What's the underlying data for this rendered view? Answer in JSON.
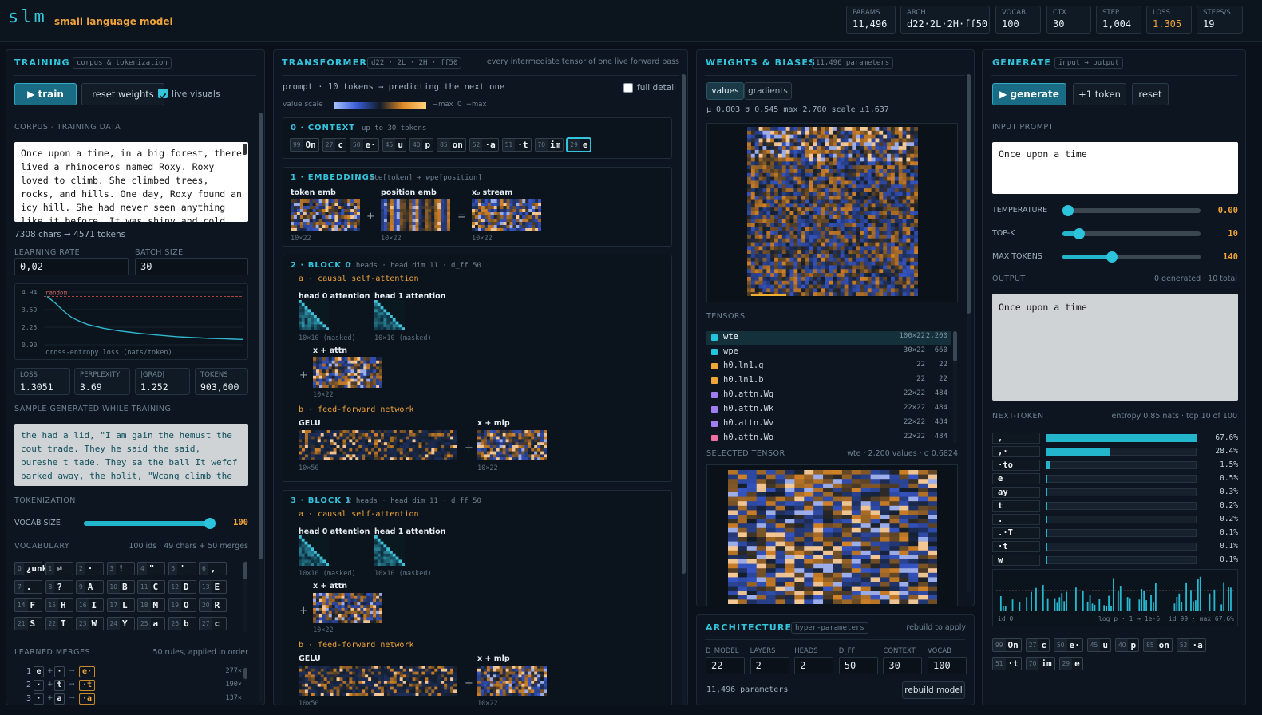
{
  "header": {
    "logo": "slm",
    "tagline": "small language model",
    "stats": [
      {
        "label": "PARAMS",
        "value": "11,496"
      },
      {
        "label": "ARCH",
        "value": "d22·2L·2H·ff50"
      },
      {
        "label": "VOCAB",
        "value": "100"
      },
      {
        "label": "CTX",
        "value": "30"
      },
      {
        "label": "STEP",
        "value": "1,004"
      },
      {
        "label": "LOSS",
        "value": "1.305"
      },
      {
        "label": "STEPS/S",
        "value": "19"
      }
    ]
  },
  "training": {
    "title": "TRAINING",
    "tag": "corpus & tokenization",
    "train_button": "▶ train",
    "reset_button": "reset weights",
    "live_visuals": "live visuals",
    "corpus_label": "CORPUS - TRAINING DATA",
    "corpus_text": "Once upon a time, in a big forest, there lived a rhinoceros named Roxy. Roxy loved to climb. She climbed trees, rocks, and hills. One day, Roxy found an icy hill. She had never seen anything like it before. It was shiny and cold, and she",
    "corpus_stats": "7308 chars → 4571 tokens",
    "fields": [
      {
        "label": "LEARNING RATE",
        "value": "0,02"
      },
      {
        "label": "BATCH SIZE",
        "value": "30"
      }
    ],
    "stats": [
      {
        "label": "LOSS",
        "value": "1.3051"
      },
      {
        "label": "PERPLEXITY",
        "value": "3.69"
      },
      {
        "label": "|GRAD|",
        "value": "1.252"
      },
      {
        "label": "TOKENS",
        "value": "903,600"
      }
    ],
    "sample_label": "SAMPLE GENERATED WHILE TRAINING",
    "sample_text": "the had a lid, \"I am gain the hemust the cout trade. They he said the said, bureshe t tade. They sa the ball It wefof parked away, the holit, \"Wcang climb the ball Idoca",
    "tokenization_label": "TOKENIZATION",
    "vocab_size_label": "VOCAB SIZE",
    "vocab_size": "100",
    "vocabulary_label": "VOCABULARY",
    "vocabulary_note": "100 ids · 49 chars + 50 merges",
    "vocab": [
      {
        "id": "0",
        "text": "¿unk?"
      },
      {
        "id": "1",
        "text": "⏎"
      },
      {
        "id": "2",
        "text": "·"
      },
      {
        "id": "3",
        "text": "!"
      },
      {
        "id": "4",
        "text": "\""
      },
      {
        "id": "5",
        "text": "'"
      },
      {
        "id": "6",
        "text": ","
      },
      {
        "id": "7",
        "text": "."
      },
      {
        "id": "8",
        "text": "?"
      },
      {
        "id": "9",
        "text": "A"
      },
      {
        "id": "10",
        "text": "B"
      },
      {
        "id": "11",
        "text": "C"
      },
      {
        "id": "12",
        "text": "D"
      },
      {
        "id": "13",
        "text": "E"
      },
      {
        "id": "14",
        "text": "F"
      },
      {
        "id": "15",
        "text": "H"
      },
      {
        "id": "16",
        "text": "I"
      },
      {
        "id": "17",
        "text": "L"
      },
      {
        "id": "18",
        "text": "M"
      },
      {
        "id": "19",
        "text": "O"
      },
      {
        "id": "20",
        "text": "R"
      },
      {
        "id": "21",
        "text": "S"
      },
      {
        "id": "22",
        "text": "T"
      },
      {
        "id": "23",
        "text": "W"
      },
      {
        "id": "24",
        "text": "Y"
      },
      {
        "id": "25",
        "text": "a"
      },
      {
        "id": "26",
        "text": "b"
      },
      {
        "id": "27",
        "text": "c"
      }
    ],
    "merges_label": "LEARNED MERGES",
    "merges_note": "50 rules, applied in order",
    "merges": [
      {
        "rank": "1",
        "a": "e",
        "plus": "+",
        "b": "·",
        "arrow": "→",
        "out": "e·",
        "count": "277×"
      },
      {
        "rank": "2",
        "a": "·",
        "plus": "+",
        "b": "t",
        "arrow": "→",
        "out": "·t",
        "count": "190×"
      },
      {
        "rank": "3",
        "a": "·",
        "plus": "+",
        "b": "a",
        "arrow": "→",
        "out": "·a",
        "count": "137×"
      }
    ]
  },
  "chart_data": [
    {
      "type": "line",
      "caption": "cross-entropy loss (nats/token)",
      "values": [
        4.6,
        4.1,
        3.5,
        3.0,
        2.7,
        2.45,
        2.3,
        2.15,
        2.05,
        1.95,
        1.88,
        1.8,
        1.74,
        1.68,
        1.62,
        1.57,
        1.52,
        1.48,
        1.45,
        1.42,
        1.39,
        1.37,
        1.35,
        1.33,
        1.31
      ],
      "ylim": [
        0.9,
        4.94
      ],
      "yticks": [
        4.94,
        3.59,
        2.25,
        {
          "value": 0.9,
          "label": "0.90"
        }
      ],
      "reference": {
        "value": 4.6,
        "label": "random"
      },
      "color": "#2fb8d0"
    },
    {
      "type": "bar",
      "orientation": "horizontal",
      "title": "NEXT-TOKEN",
      "subtitle": "entropy 0.85 nats · top 10 of 100",
      "categories": [
        ",",
        ",·",
        "·to",
        "e",
        "ay",
        "t",
        ".",
        ".·T",
        "·t",
        "w"
      ],
      "values": [
        67.6,
        28.4,
        1.5,
        0.5,
        0.3,
        0.2,
        0.2,
        0.1,
        0.1,
        0.1
      ],
      "value_labels": [
        "67.6%",
        "28.4%",
        "1.5%",
        "0.5%",
        "0.3%",
        "0.2%",
        "0.2%",
        "0.1%",
        "0.1%",
        "0.1%"
      ],
      "xlim": [
        0,
        67.6
      ],
      "color": "#22b5cc"
    }
  ],
  "transformer": {
    "title": "TRANSFORMER",
    "tag": "d22 · 2L · 2H · ff50",
    "note": "every intermediate tensor of one live forward pass",
    "prompt_line": "prompt · 10 tokens → predicting the next one",
    "full_detail": "full detail",
    "value_scale": "value scale",
    "scale_ends": "−max  0  +max",
    "context": {
      "title": "0 · CONTEXT",
      "note": "up to 30 tokens",
      "tokens": [
        {
          "id": "99",
          "text": "On"
        },
        {
          "id": "27",
          "text": "c"
        },
        {
          "id": "50",
          "text": "e·"
        },
        {
          "id": "45",
          "text": "u"
        },
        {
          "id": "40",
          "text": "p"
        },
        {
          "id": "85",
          "text": "on"
        },
        {
          "id": "52",
          "text": "·a"
        },
        {
          "id": "51",
          "text": "·t"
        },
        {
          "id": "70",
          "text": "im"
        },
        {
          "id": "29",
          "text": "e"
        }
      ]
    },
    "embeddings": {
      "title": "1 · EMBEDDINGS",
      "note": "wte[token] + wpe[position]",
      "labels": [
        "token emb",
        "position emb",
        "x₀ stream"
      ],
      "shape": "10×22",
      "plus": "+",
      "equals": "="
    },
    "blocks": [
      {
        "title": "2 · BLOCK 0",
        "note": "2 heads · head dim 11 · d_ff 50",
        "attn_title": "a · causal self-attention",
        "heads": [
          "head 0 attention",
          "head 1 attention"
        ],
        "attn_shape": "10×10 (masked)",
        "residual1": "x + attn",
        "shape": "10×22",
        "plus": "+",
        "ffn_title": "b · feed-forward network",
        "gelu": "GELU",
        "residual2": "x + mlp",
        "gelu_shape": "10×50"
      },
      {
        "title": "3 · BLOCK 1",
        "note": "2 heads · head dim 11 · d_ff 50",
        "attn_title": "a · causal self-attention",
        "heads": [
          "head 0 attention",
          "head 1 attention"
        ],
        "attn_shape": "10×10 (masked)",
        "residual1": "x + attn",
        "shape": "10×22",
        "plus": "+",
        "ffn_title": "b · feed-forward network",
        "gelu": "GELU",
        "residual2": "x + mlp",
        "gelu_shape": "10×50"
      }
    ]
  },
  "weights": {
    "title": "WEIGHTS & BIASES",
    "tag": "11,496 parameters",
    "tabs": [
      "values",
      "gradients"
    ],
    "stats": "μ 0.003 σ 0.545 max 2.700 scale ±1.637",
    "tensors_label": "TENSORS",
    "tensors": [
      {
        "name": "wte",
        "shape": "100×22",
        "count": "2,200",
        "color": "#22c3dd"
      },
      {
        "name": "wpe",
        "shape": "30×22",
        "count": "660",
        "color": "#22c3dd"
      },
      {
        "name": "h0.ln1.g",
        "shape": "22",
        "count": "22",
        "color": "#f0a53a"
      },
      {
        "name": "h0.ln1.b",
        "shape": "22",
        "count": "22",
        "color": "#f0a53a"
      },
      {
        "name": "h0.attn.Wq",
        "shape": "22×22",
        "count": "484",
        "color": "#a07ef0"
      },
      {
        "name": "h0.attn.Wk",
        "shape": "22×22",
        "count": "484",
        "color": "#a07ef0"
      },
      {
        "name": "h0.attn.Wv",
        "shape": "22×22",
        "count": "484",
        "color": "#a07ef0"
      },
      {
        "name": "h0.attn.Wo",
        "shape": "22×22",
        "count": "484",
        "color": "#ef6fa0"
      }
    ],
    "selected_label": "SELECTED TENSOR",
    "selected_note": "wte · 2,200 values · σ 0.6824"
  },
  "architecture": {
    "title": "ARCHITECTURE",
    "tag": "hyper-parameters",
    "note": "rebuild to apply",
    "fields": [
      {
        "label": "D_MODEL",
        "value": "22"
      },
      {
        "label": "LAYERS",
        "value": "2"
      },
      {
        "label": "HEADS",
        "value": "2"
      },
      {
        "label": "D_FF",
        "value": "50"
      },
      {
        "label": "CONTEXT",
        "value": "30"
      },
      {
        "label": "VOCAB",
        "value": "100"
      }
    ],
    "params": "11,496 parameters",
    "rebuild_button": "rebuild model"
  },
  "generate": {
    "title": "GENERATE",
    "tag": "input → output",
    "generate_button": "▶ generate",
    "step_button": "+1 token",
    "reset_button": "reset",
    "prompt_label": "INPUT PROMPT",
    "prompt": "Once upon a time",
    "sliders": [
      {
        "label": "TEMPERATURE",
        "value": "0.00"
      },
      {
        "label": "TOP-K",
        "value": "10"
      },
      {
        "label": "MAX TOKENS",
        "value": "140"
      }
    ],
    "output_label": "OUTPUT",
    "output_note": "0 generated · 10 total",
    "output": "Once upon a time",
    "hist_left": "id 0",
    "hist_mid": "log p · 1 → 1e-6",
    "hist_right": "id 99 · max 67.6%"
  }
}
